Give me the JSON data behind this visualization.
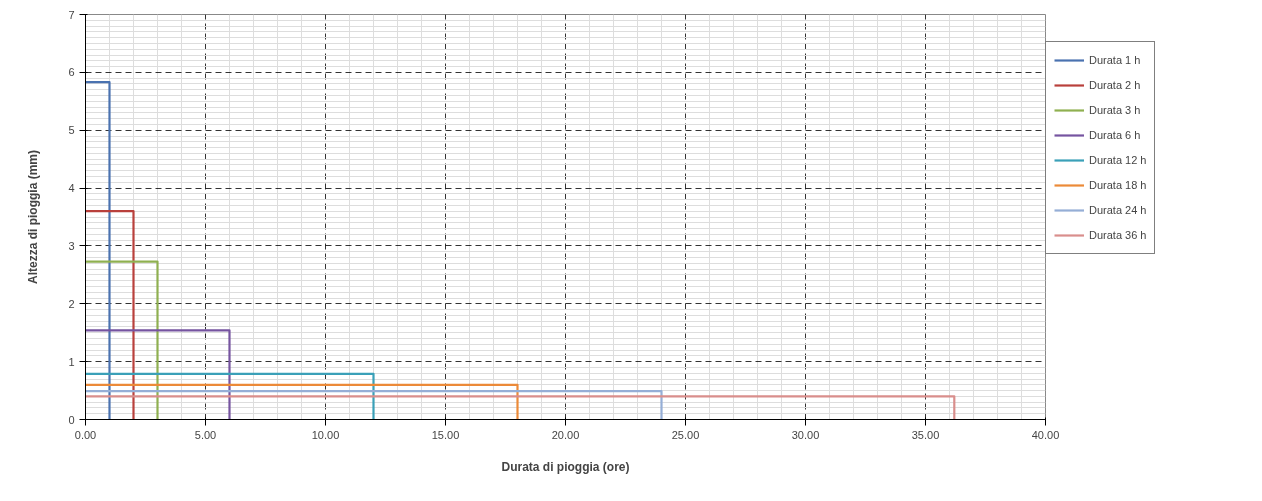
{
  "chart_data": {
    "type": "line",
    "xlabel": "Durata di pioggia (ore)",
    "ylabel": "Altezza di pioggia (mm)",
    "xlim": [
      0,
      40
    ],
    "ylim": [
      0,
      7
    ],
    "xticks": [
      {
        "value": 0,
        "label": "0.00"
      },
      {
        "value": 5,
        "label": "5.00"
      },
      {
        "value": 10,
        "label": "10.00"
      },
      {
        "value": 15,
        "label": "15.00"
      },
      {
        "value": 20,
        "label": "20.00"
      },
      {
        "value": 25,
        "label": "25.00"
      },
      {
        "value": 30,
        "label": "30.00"
      },
      {
        "value": 35,
        "label": "35.00"
      },
      {
        "value": 40,
        "label": "40.00"
      }
    ],
    "yticks": [
      0,
      1,
      2,
      3,
      4,
      5,
      6,
      7
    ],
    "grid": true,
    "legend": "right",
    "line_style": "solid",
    "series": [
      {
        "name": "Durata 1 h",
        "color": "#4a72b0",
        "x": [
          0,
          1,
          1
        ],
        "values": [
          5.83,
          5.83,
          0
        ]
      },
      {
        "name": "Durata 2 h",
        "color": "#b9403c",
        "x": [
          0,
          2,
          2
        ],
        "values": [
          3.6,
          3.6,
          0
        ]
      },
      {
        "name": "Durata 3 h",
        "color": "#8fb050",
        "x": [
          0,
          3,
          3
        ],
        "values": [
          2.73,
          2.73,
          0
        ]
      },
      {
        "name": "Durata 6 h",
        "color": "#7654a0",
        "x": [
          0,
          6,
          6
        ],
        "values": [
          1.54,
          1.54,
          0
        ]
      },
      {
        "name": "Durata 12 h",
        "color": "#3aa0b8",
        "x": [
          0,
          12,
          12
        ],
        "values": [
          0.79,
          0.79,
          0
        ]
      },
      {
        "name": "Durata 18 h",
        "color": "#ec8a38",
        "x": [
          0,
          18,
          18
        ],
        "values": [
          0.6,
          0.6,
          0
        ]
      },
      {
        "name": "Durata 24 h",
        "color": "#95aed6",
        "x": [
          0,
          24,
          24
        ],
        "values": [
          0.49,
          0.49,
          0
        ]
      },
      {
        "name": "Durata 36 h",
        "color": "#d98e8c",
        "x": [
          0,
          36.2,
          36.2
        ],
        "values": [
          0.4,
          0.4,
          0
        ]
      }
    ]
  }
}
